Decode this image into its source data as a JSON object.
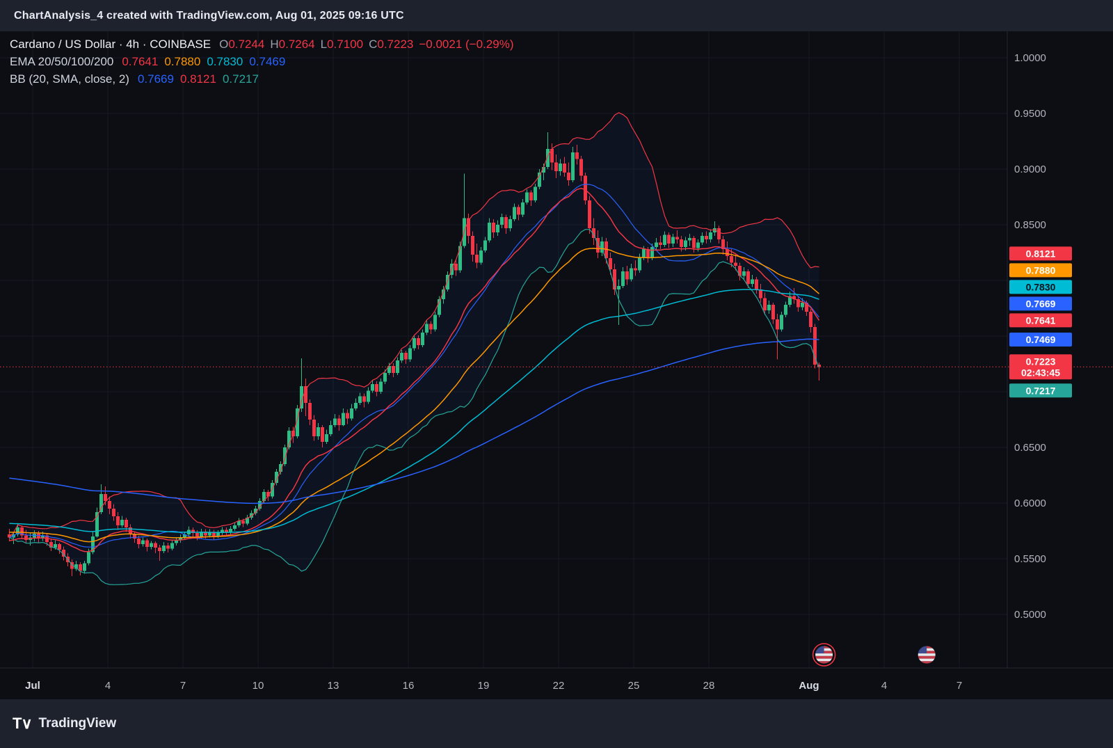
{
  "header": {
    "title": "ChartAnalysis_4 created with TradingView.com, Aug 01, 2025 09:16 UTC"
  },
  "legend": {
    "symbol": {
      "title": "Cardano / US Dollar · 4h · COINBASE",
      "ohlc": [
        {
          "label": "O",
          "value": "0.7244"
        },
        {
          "label": "H",
          "value": "0.7264"
        },
        {
          "label": "L",
          "value": "0.7100"
        },
        {
          "label": "C",
          "value": "0.7223"
        }
      ],
      "change": "−0.0021 (−0.29%)",
      "value_color": "#f23645",
      "label_color": "#9aa0ab"
    },
    "ema": {
      "label": "EMA 20/50/100/200",
      "values": [
        {
          "text": "0.7641",
          "color": "#f23645"
        },
        {
          "text": "0.7880",
          "color": "#ff9800"
        },
        {
          "text": "0.7830",
          "color": "#00bcd4"
        },
        {
          "text": "0.7469",
          "color": "#2962ff"
        }
      ]
    },
    "bb": {
      "label": "BB (20, SMA, close, 2)",
      "values": [
        {
          "text": "0.7669",
          "color": "#2962ff"
        },
        {
          "text": "0.8121",
          "color": "#f23645"
        },
        {
          "text": "0.7217",
          "color": "#26a69a"
        }
      ]
    }
  },
  "price_axis": {
    "labels": [
      {
        "text": "1.0000",
        "value": 1.0
      },
      {
        "text": "0.9500",
        "value": 0.95
      },
      {
        "text": "0.9000",
        "value": 0.9
      },
      {
        "text": "0.8500",
        "value": 0.85
      },
      {
        "text": "0.6500",
        "value": 0.65
      },
      {
        "text": "0.6000",
        "value": 0.6
      },
      {
        "text": "0.5500",
        "value": 0.55
      },
      {
        "text": "0.5000",
        "value": 0.5
      }
    ]
  },
  "time_axis": {
    "labels": [
      {
        "text": "Jul",
        "day": 0
      },
      {
        "text": "4",
        "day": 3
      },
      {
        "text": "7",
        "day": 6
      },
      {
        "text": "10",
        "day": 9
      },
      {
        "text": "13",
        "day": 12
      },
      {
        "text": "16",
        "day": 15
      },
      {
        "text": "19",
        "day": 18
      },
      {
        "text": "22",
        "day": 21
      },
      {
        "text": "25",
        "day": 24
      },
      {
        "text": "28",
        "day": 27
      },
      {
        "text": "Aug",
        "day": 31
      },
      {
        "text": "4",
        "day": 34
      },
      {
        "text": "7",
        "day": 37
      }
    ]
  },
  "badges": [
    {
      "text": "0.8121",
      "price": 0.8121,
      "color": "#f23645",
      "text_color": "#ffffff"
    },
    {
      "text": "0.7880",
      "price": 0.788,
      "color": "#ff9800",
      "text_color": "#ffffff"
    },
    {
      "text": "0.7830",
      "price": 0.783,
      "color": "#00bcd4",
      "text_color": "#06121d"
    },
    {
      "text": "0.7669",
      "price": 0.7669,
      "color": "#2962ff",
      "text_color": "#ffffff"
    },
    {
      "text": "0.7641",
      "price": 0.7641,
      "color": "#f23645",
      "text_color": "#ffffff"
    },
    {
      "text": "0.7469",
      "price": 0.7469,
      "color": "#2962ff",
      "text_color": "#ffffff"
    },
    {
      "text": "0.7223",
      "price": 0.7223,
      "color": "#f23645",
      "text_color": "#ffffff",
      "is_current": true,
      "countdown": "02:43:45"
    },
    {
      "text": "0.7217",
      "price": 0.7217,
      "color": "#26a69a",
      "text_color": "#ffffff"
    }
  ],
  "current_price": {
    "value": 0.7223,
    "text": "0.7223",
    "countdown": "02:43:45",
    "color": "#f23645"
  },
  "event_markers": [
    {
      "flag": "US",
      "day": 31.6,
      "ring": true
    },
    {
      "flag": "US",
      "day": 35.7,
      "ring": false
    }
  ],
  "footer": {
    "brand": "TradingView"
  },
  "chart_data": {
    "type": "candlestick",
    "symbol": "Cardano / US Dollar",
    "exchange": "COINBASE",
    "interval": "4h",
    "ylim": [
      0.45,
      1.02
    ],
    "up_color": "#2ebd85",
    "down_color": "#f23645",
    "candles": [
      [
        0.572,
        0.577,
        0.5655,
        0.569
      ],
      [
        0.569,
        0.574,
        0.563,
        0.572
      ],
      [
        0.572,
        0.5815,
        0.57,
        0.578
      ],
      [
        0.578,
        0.58,
        0.568,
        0.571
      ],
      [
        0.571,
        0.576,
        0.564,
        0.567
      ],
      [
        0.567,
        0.573,
        0.562,
        0.569
      ],
      [
        0.569,
        0.5755,
        0.5655,
        0.5725
      ],
      [
        0.5725,
        0.575,
        0.564,
        0.568
      ],
      [
        0.568,
        0.5745,
        0.566,
        0.571
      ],
      [
        0.571,
        0.5725,
        0.5615,
        0.565
      ],
      [
        0.565,
        0.568,
        0.557,
        0.56
      ],
      [
        0.56,
        0.5665,
        0.558,
        0.563
      ],
      [
        0.563,
        0.5645,
        0.5545,
        0.558
      ],
      [
        0.558,
        0.561,
        0.5485,
        0.552
      ],
      [
        0.552,
        0.555,
        0.543,
        0.547
      ],
      [
        0.547,
        0.5495,
        0.5345,
        0.541
      ],
      [
        0.541,
        0.548,
        0.539,
        0.545
      ],
      [
        0.545,
        0.547,
        0.535,
        0.539
      ],
      [
        0.539,
        0.548,
        0.5365,
        0.546
      ],
      [
        0.546,
        0.559,
        0.544,
        0.556
      ],
      [
        0.556,
        0.574,
        0.554,
        0.57
      ],
      [
        0.57,
        0.596,
        0.569,
        0.592
      ],
      [
        0.592,
        0.617,
        0.59,
        0.608
      ],
      [
        0.608,
        0.615,
        0.598,
        0.602
      ],
      [
        0.602,
        0.606,
        0.59,
        0.595
      ],
      [
        0.595,
        0.599,
        0.584,
        0.588
      ],
      [
        0.588,
        0.592,
        0.576,
        0.58
      ],
      [
        0.58,
        0.5885,
        0.578,
        0.585
      ],
      [
        0.585,
        0.587,
        0.574,
        0.578
      ],
      [
        0.578,
        0.581,
        0.568,
        0.572
      ],
      [
        0.572,
        0.574,
        0.5645,
        0.568
      ],
      [
        0.568,
        0.5705,
        0.5595,
        0.563
      ],
      [
        0.563,
        0.569,
        0.561,
        0.5665
      ],
      [
        0.5665,
        0.568,
        0.5565,
        0.5605
      ],
      [
        0.5605,
        0.566,
        0.5585,
        0.564
      ],
      [
        0.564,
        0.5655,
        0.555,
        0.56
      ],
      [
        0.56,
        0.5625,
        0.548,
        0.557
      ],
      [
        0.557,
        0.565,
        0.555,
        0.562
      ],
      [
        0.562,
        0.5645,
        0.5555,
        0.559
      ],
      [
        0.559,
        0.567,
        0.5575,
        0.564
      ],
      [
        0.564,
        0.5695,
        0.562,
        0.5665
      ],
      [
        0.5665,
        0.572,
        0.5645,
        0.569
      ],
      [
        0.569,
        0.5745,
        0.567,
        0.572
      ],
      [
        0.572,
        0.579,
        0.57,
        0.576
      ],
      [
        0.576,
        0.578,
        0.5695,
        0.573
      ],
      [
        0.573,
        0.5755,
        0.5665,
        0.57
      ],
      [
        0.57,
        0.577,
        0.5685,
        0.5745
      ],
      [
        0.5745,
        0.5765,
        0.568,
        0.571
      ],
      [
        0.571,
        0.5765,
        0.569,
        0.574
      ],
      [
        0.574,
        0.576,
        0.567,
        0.57
      ],
      [
        0.57,
        0.5755,
        0.5685,
        0.573
      ],
      [
        0.573,
        0.5785,
        0.571,
        0.576
      ],
      [
        0.576,
        0.578,
        0.5705,
        0.5735
      ],
      [
        0.5735,
        0.5795,
        0.5715,
        0.577
      ],
      [
        0.577,
        0.5825,
        0.575,
        0.58
      ],
      [
        0.58,
        0.5865,
        0.578,
        0.584
      ],
      [
        0.584,
        0.586,
        0.5785,
        0.5815
      ],
      [
        0.5815,
        0.5895,
        0.58,
        0.587
      ],
      [
        0.587,
        0.5935,
        0.585,
        0.591
      ],
      [
        0.591,
        0.5975,
        0.589,
        0.595
      ],
      [
        0.595,
        0.6045,
        0.593,
        0.602
      ],
      [
        0.602,
        0.6125,
        0.6,
        0.61
      ],
      [
        0.61,
        0.612,
        0.602,
        0.606
      ],
      [
        0.606,
        0.6205,
        0.604,
        0.618
      ],
      [
        0.618,
        0.6305,
        0.616,
        0.628
      ],
      [
        0.628,
        0.6375,
        0.6255,
        0.635
      ],
      [
        0.635,
        0.6525,
        0.633,
        0.65
      ],
      [
        0.65,
        0.668,
        0.648,
        0.665
      ],
      [
        0.665,
        0.6685,
        0.654,
        0.66
      ],
      [
        0.66,
        0.688,
        0.658,
        0.685
      ],
      [
        0.685,
        0.73,
        0.682,
        0.705
      ],
      [
        0.705,
        0.712,
        0.678,
        0.69
      ],
      [
        0.69,
        0.693,
        0.67,
        0.675
      ],
      [
        0.675,
        0.679,
        0.656,
        0.66
      ],
      [
        0.66,
        0.672,
        0.657,
        0.668
      ],
      [
        0.668,
        0.67,
        0.65,
        0.655
      ],
      [
        0.655,
        0.666,
        0.653,
        0.662
      ],
      [
        0.662,
        0.674,
        0.66,
        0.67
      ],
      [
        0.67,
        0.68,
        0.668,
        0.676
      ],
      [
        0.676,
        0.679,
        0.665,
        0.67
      ],
      [
        0.67,
        0.685,
        0.669,
        0.681
      ],
      [
        0.681,
        0.684,
        0.671,
        0.676
      ],
      [
        0.676,
        0.689,
        0.674,
        0.685
      ],
      [
        0.685,
        0.694,
        0.683,
        0.69
      ],
      [
        0.69,
        0.699,
        0.688,
        0.696
      ],
      [
        0.696,
        0.6985,
        0.686,
        0.691
      ],
      [
        0.691,
        0.704,
        0.689,
        0.701
      ],
      [
        0.701,
        0.71,
        0.699,
        0.707
      ],
      [
        0.707,
        0.7095,
        0.696,
        0.7
      ],
      [
        0.7,
        0.712,
        0.698,
        0.709
      ],
      [
        0.709,
        0.72,
        0.707,
        0.717
      ],
      [
        0.717,
        0.726,
        0.715,
        0.723
      ],
      [
        0.723,
        0.7255,
        0.713,
        0.717
      ],
      [
        0.717,
        0.731,
        0.715,
        0.728
      ],
      [
        0.728,
        0.7375,
        0.726,
        0.735
      ],
      [
        0.735,
        0.737,
        0.725,
        0.729
      ],
      [
        0.729,
        0.742,
        0.727,
        0.739
      ],
      [
        0.739,
        0.751,
        0.737,
        0.748
      ],
      [
        0.748,
        0.7505,
        0.738,
        0.742
      ],
      [
        0.742,
        0.756,
        0.74,
        0.753
      ],
      [
        0.753,
        0.764,
        0.751,
        0.761
      ],
      [
        0.761,
        0.7635,
        0.752,
        0.756
      ],
      [
        0.756,
        0.772,
        0.754,
        0.769
      ],
      [
        0.769,
        0.786,
        0.767,
        0.783
      ],
      [
        0.783,
        0.795,
        0.779,
        0.792
      ],
      [
        0.792,
        0.808,
        0.79,
        0.805
      ],
      [
        0.805,
        0.819,
        0.802,
        0.815
      ],
      [
        0.815,
        0.818,
        0.804,
        0.809
      ],
      [
        0.809,
        0.835,
        0.807,
        0.831
      ],
      [
        0.831,
        0.896,
        0.829,
        0.856
      ],
      [
        0.856,
        0.86,
        0.833,
        0.84
      ],
      [
        0.84,
        0.844,
        0.817,
        0.823
      ],
      [
        0.823,
        0.833,
        0.811,
        0.816
      ],
      [
        0.816,
        0.83,
        0.814,
        0.827
      ],
      [
        0.827,
        0.839,
        0.825,
        0.836
      ],
      [
        0.836,
        0.856,
        0.834,
        0.852
      ],
      [
        0.852,
        0.855,
        0.838,
        0.843
      ],
      [
        0.843,
        0.854,
        0.84,
        0.85
      ],
      [
        0.85,
        0.86,
        0.847,
        0.857
      ],
      [
        0.857,
        0.859,
        0.842,
        0.847
      ],
      [
        0.847,
        0.858,
        0.844,
        0.855
      ],
      [
        0.855,
        0.869,
        0.853,
        0.866
      ],
      [
        0.866,
        0.868,
        0.854,
        0.859
      ],
      [
        0.859,
        0.873,
        0.857,
        0.87
      ],
      [
        0.87,
        0.882,
        0.868,
        0.879
      ],
      [
        0.879,
        0.881,
        0.867,
        0.872
      ],
      [
        0.872,
        0.887,
        0.87,
        0.884
      ],
      [
        0.884,
        0.9,
        0.882,
        0.897
      ],
      [
        0.897,
        0.905,
        0.89,
        0.902
      ],
      [
        0.902,
        0.933,
        0.9,
        0.918
      ],
      [
        0.918,
        0.923,
        0.899,
        0.906
      ],
      [
        0.906,
        0.913,
        0.892,
        0.898
      ],
      [
        0.898,
        0.909,
        0.894,
        0.905
      ],
      [
        0.905,
        0.911,
        0.893,
        0.897
      ],
      [
        0.897,
        0.906,
        0.885,
        0.89
      ],
      [
        0.89,
        0.92,
        0.888,
        0.915
      ],
      [
        0.915,
        0.922,
        0.904,
        0.909
      ],
      [
        0.909,
        0.912,
        0.889,
        0.894
      ],
      [
        0.894,
        0.897,
        0.868,
        0.872
      ],
      [
        0.872,
        0.876,
        0.842,
        0.847
      ],
      [
        0.847,
        0.856,
        0.832,
        0.838
      ],
      [
        0.838,
        0.845,
        0.82,
        0.825
      ],
      [
        0.825,
        0.839,
        0.822,
        0.835
      ],
      [
        0.835,
        0.838,
        0.815,
        0.82
      ],
      [
        0.82,
        0.825,
        0.805,
        0.81
      ],
      [
        0.81,
        0.815,
        0.787,
        0.792
      ],
      [
        0.792,
        0.801,
        0.76,
        0.795
      ],
      [
        0.795,
        0.812,
        0.793,
        0.808
      ],
      [
        0.808,
        0.813,
        0.796,
        0.801
      ],
      [
        0.801,
        0.815,
        0.799,
        0.811
      ],
      [
        0.811,
        0.818,
        0.804,
        0.809
      ],
      [
        0.809,
        0.824,
        0.807,
        0.821
      ],
      [
        0.821,
        0.831,
        0.818,
        0.828
      ],
      [
        0.828,
        0.83,
        0.816,
        0.82
      ],
      [
        0.82,
        0.833,
        0.818,
        0.83
      ],
      [
        0.83,
        0.838,
        0.827,
        0.834
      ],
      [
        0.834,
        0.84,
        0.828,
        0.832
      ],
      [
        0.832,
        0.844,
        0.83,
        0.841
      ],
      [
        0.841,
        0.843,
        0.829,
        0.833
      ],
      [
        0.833,
        0.842,
        0.83,
        0.839
      ],
      [
        0.839,
        0.845,
        0.833,
        0.837
      ],
      [
        0.837,
        0.84,
        0.826,
        0.83
      ],
      [
        0.83,
        0.839,
        0.827,
        0.836
      ],
      [
        0.836,
        0.842,
        0.831,
        0.838
      ],
      [
        0.838,
        0.84,
        0.825,
        0.829
      ],
      [
        0.829,
        0.837,
        0.826,
        0.834
      ],
      [
        0.834,
        0.843,
        0.832,
        0.84
      ],
      [
        0.84,
        0.844,
        0.833,
        0.837
      ],
      [
        0.837,
        0.846,
        0.834,
        0.843
      ],
      [
        0.843,
        0.853,
        0.84,
        0.847
      ],
      [
        0.847,
        0.849,
        0.833,
        0.837
      ],
      [
        0.837,
        0.84,
        0.823,
        0.828
      ],
      [
        0.828,
        0.835,
        0.818,
        0.822
      ],
      [
        0.822,
        0.828,
        0.812,
        0.816
      ],
      [
        0.816,
        0.823,
        0.809,
        0.813
      ],
      [
        0.813,
        0.816,
        0.8,
        0.804
      ],
      [
        0.804,
        0.812,
        0.801,
        0.808
      ],
      [
        0.808,
        0.81,
        0.793,
        0.797
      ],
      [
        0.797,
        0.805,
        0.794,
        0.801
      ],
      [
        0.801,
        0.803,
        0.788,
        0.792
      ],
      [
        0.792,
        0.797,
        0.78,
        0.784
      ],
      [
        0.784,
        0.789,
        0.769,
        0.773
      ],
      [
        0.773,
        0.782,
        0.77,
        0.778
      ],
      [
        0.778,
        0.78,
        0.761,
        0.765
      ],
      [
        0.765,
        0.77,
        0.729,
        0.756
      ],
      [
        0.756,
        0.772,
        0.754,
        0.769
      ],
      [
        0.769,
        0.781,
        0.767,
        0.778
      ],
      [
        0.778,
        0.79,
        0.776,
        0.786
      ],
      [
        0.786,
        0.793,
        0.779,
        0.783
      ],
      [
        0.783,
        0.786,
        0.772,
        0.776
      ],
      [
        0.776,
        0.784,
        0.773,
        0.78
      ],
      [
        0.78,
        0.782,
        0.768,
        0.772
      ],
      [
        0.772,
        0.7745,
        0.753,
        0.758
      ],
      [
        0.758,
        0.761,
        0.721,
        0.7244
      ],
      [
        0.7244,
        0.7264,
        0.71,
        0.7223
      ]
    ],
    "indicators": {
      "ema": [
        {
          "period": 20,
          "color": "#f23645",
          "seed": 0.566,
          "final": 0.7641
        },
        {
          "period": 50,
          "color": "#ff9800",
          "seed": 0.574,
          "final": 0.788
        },
        {
          "period": 100,
          "color": "#00bcd4",
          "seed": 0.582,
          "final": 0.783
        },
        {
          "period": 200,
          "color": "#2962ff",
          "seed": 0.623,
          "final": 0.7469
        }
      ],
      "bollinger": {
        "period": 20,
        "stddev": 2,
        "upper_color": "#f23645",
        "basis_color": "#2962ff",
        "lower_color": "#26a69a",
        "fill": "rgba(41,98,255,0.06)",
        "final_upper": 0.8121,
        "final_basis": 0.7669,
        "final_lower": 0.7217
      }
    }
  }
}
